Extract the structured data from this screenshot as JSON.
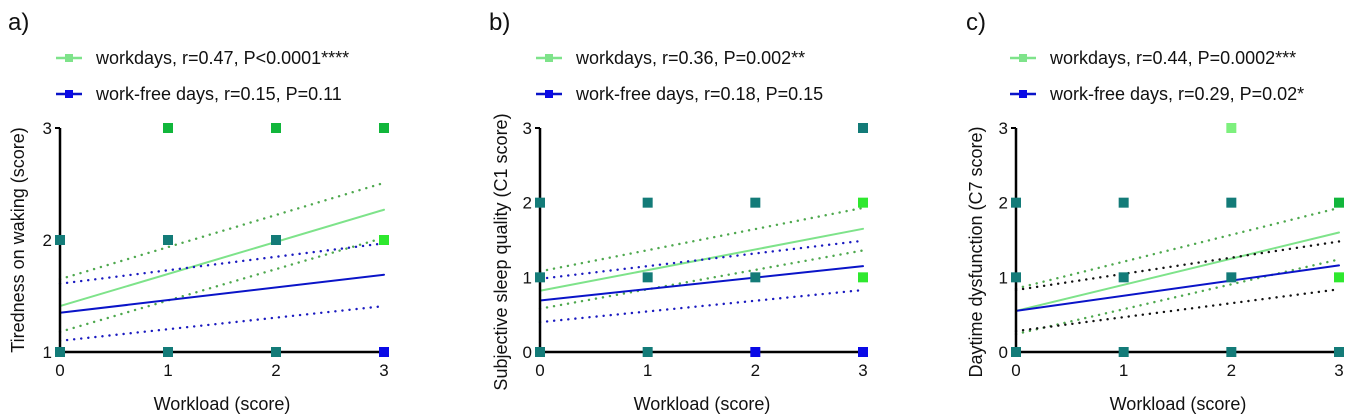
{
  "colors": {
    "workdays_line": "#7ee38a",
    "workdays_ci": "#4ea84e",
    "workfree_line": "#0a14c8",
    "workfree_ci": "#1a1ac0",
    "workfree_ci_c": "#111111",
    "marker_green": "#11b63b",
    "marker_lightgreen": "#2ee82e",
    "marker_palegreen": "#7df07d",
    "marker_teal": "#137b78",
    "marker_blue": "#0a0ae6",
    "axis": "#000000"
  },
  "chart_data": [
    {
      "type": "scatter",
      "panel": "a)",
      "xlabel": "Workload (score)",
      "ylabel": "Tiredness on waking (score)",
      "xlim": [
        0,
        3
      ],
      "ylim": [
        1,
        3
      ],
      "xticks": [
        "0",
        "1",
        "2",
        "3"
      ],
      "yticks": [
        "1",
        "2",
        "3"
      ],
      "yticks_values": [
        1,
        2,
        3
      ],
      "legend": [
        {
          "label": "workdays, r=0.47, P<0.0001****",
          "series": "workdays"
        },
        {
          "label": "work-free days, r=0.15, P=0.11",
          "series": "workfree"
        }
      ],
      "points": [
        {
          "x": 1,
          "y": 3,
          "color": "marker_green"
        },
        {
          "x": 2,
          "y": 3,
          "color": "marker_green"
        },
        {
          "x": 3,
          "y": 3,
          "color": "marker_green"
        },
        {
          "x": 0,
          "y": 2,
          "color": "marker_teal"
        },
        {
          "x": 1,
          "y": 2,
          "color": "marker_teal"
        },
        {
          "x": 2,
          "y": 2,
          "color": "marker_teal"
        },
        {
          "x": 3,
          "y": 2,
          "color": "marker_lightgreen"
        },
        {
          "x": 0,
          "y": 1,
          "color": "marker_teal"
        },
        {
          "x": 1,
          "y": 1,
          "color": "marker_teal"
        },
        {
          "x": 2,
          "y": 1,
          "color": "marker_teal"
        },
        {
          "x": 3,
          "y": 1,
          "color": "marker_blue"
        }
      ],
      "series": [
        {
          "name": "workdays",
          "kind": "fit",
          "y0": 1.41,
          "y3": 2.27
        },
        {
          "name": "workdays",
          "kind": "ci_upper",
          "y0": 1.65,
          "y3": 2.51
        },
        {
          "name": "workdays",
          "kind": "ci_lower",
          "y0": 1.18,
          "y3": 2.02
        },
        {
          "name": "workfree",
          "kind": "fit",
          "y0": 1.35,
          "y3": 1.69
        },
        {
          "name": "workfree",
          "kind": "ci_upper",
          "y0": 1.61,
          "y3": 1.97
        },
        {
          "name": "workfree",
          "kind": "ci_lower",
          "y0": 1.1,
          "y3": 1.41
        }
      ]
    },
    {
      "type": "scatter",
      "panel": "b)",
      "xlabel": "Workload (score)",
      "ylabel": "Subjective sleep quality (C1 score)",
      "xlim": [
        0,
        3
      ],
      "ylim": [
        0,
        3
      ],
      "xticks": [
        "0",
        "1",
        "2",
        "3"
      ],
      "yticks": [
        "0",
        "1",
        "2",
        "3"
      ],
      "yticks_values": [
        0,
        1,
        2,
        3
      ],
      "legend": [
        {
          "label": "workdays, r=0.36, P=0.002**",
          "series": "workdays"
        },
        {
          "label": "work-free days, r=0.18, P=0.15",
          "series": "workfree"
        }
      ],
      "points": [
        {
          "x": 3,
          "y": 3,
          "color": "marker_teal"
        },
        {
          "x": 0,
          "y": 2,
          "color": "marker_teal"
        },
        {
          "x": 1,
          "y": 2,
          "color": "marker_teal"
        },
        {
          "x": 2,
          "y": 2,
          "color": "marker_teal"
        },
        {
          "x": 3,
          "y": 2,
          "color": "marker_lightgreen"
        },
        {
          "x": 0,
          "y": 1,
          "color": "marker_teal"
        },
        {
          "x": 1,
          "y": 1,
          "color": "marker_teal"
        },
        {
          "x": 2,
          "y": 1,
          "color": "marker_teal"
        },
        {
          "x": 3,
          "y": 1,
          "color": "marker_lightgreen"
        },
        {
          "x": 0,
          "y": 0,
          "color": "marker_teal"
        },
        {
          "x": 1,
          "y": 0,
          "color": "marker_teal"
        },
        {
          "x": 2,
          "y": 0,
          "color": "marker_blue"
        },
        {
          "x": 3,
          "y": 0,
          "color": "marker_blue"
        }
      ],
      "series": [
        {
          "name": "workdays",
          "kind": "fit",
          "y0": 0.82,
          "y3": 1.65
        },
        {
          "name": "workdays",
          "kind": "ci_upper",
          "y0": 1.08,
          "y3": 1.93
        },
        {
          "name": "workdays",
          "kind": "ci_lower",
          "y0": 0.58,
          "y3": 1.36
        },
        {
          "name": "workfree",
          "kind": "fit",
          "y0": 0.69,
          "y3": 1.15
        },
        {
          "name": "workfree",
          "kind": "ci_upper",
          "y0": 0.98,
          "y3": 1.49
        },
        {
          "name": "workfree",
          "kind": "ci_lower",
          "y0": 0.4,
          "y3": 0.83
        }
      ]
    },
    {
      "type": "scatter",
      "panel": "c)",
      "xlabel": "Workload (score)",
      "ylabel": "Daytime dysfunction (C7 score)",
      "xlim": [
        0,
        3
      ],
      "ylim": [
        0,
        3
      ],
      "xticks": [
        "0",
        "1",
        "2",
        "3"
      ],
      "yticks": [
        "0",
        "1",
        "2",
        "3"
      ],
      "yticks_values": [
        0,
        1,
        2,
        3
      ],
      "legend": [
        {
          "label": "workdays, r=0.44, P=0.0002***",
          "series": "workdays"
        },
        {
          "label": "work-free days, r=0.29, P=0.02*",
          "series": "workfree"
        }
      ],
      "points": [
        {
          "x": 2,
          "y": 3,
          "color": "marker_palegreen"
        },
        {
          "x": 0,
          "y": 2,
          "color": "marker_teal"
        },
        {
          "x": 1,
          "y": 2,
          "color": "marker_teal"
        },
        {
          "x": 2,
          "y": 2,
          "color": "marker_teal"
        },
        {
          "x": 3,
          "y": 2,
          "color": "marker_green"
        },
        {
          "x": 0,
          "y": 1,
          "color": "marker_teal"
        },
        {
          "x": 1,
          "y": 1,
          "color": "marker_teal"
        },
        {
          "x": 2,
          "y": 1,
          "color": "marker_teal"
        },
        {
          "x": 3,
          "y": 1,
          "color": "marker_lightgreen"
        },
        {
          "x": 0,
          "y": 0,
          "color": "marker_teal"
        },
        {
          "x": 1,
          "y": 0,
          "color": "marker_teal"
        },
        {
          "x": 2,
          "y": 0,
          "color": "marker_teal"
        },
        {
          "x": 3,
          "y": 0,
          "color": "marker_teal"
        }
      ],
      "series": [
        {
          "name": "workdays",
          "kind": "fit",
          "y0": 0.55,
          "y3": 1.6
        },
        {
          "name": "workdays",
          "kind": "ci_upper",
          "y0": 0.85,
          "y3": 1.93
        },
        {
          "name": "workdays",
          "kind": "ci_lower",
          "y0": 0.24,
          "y3": 1.24
        },
        {
          "name": "workfree",
          "kind": "fit",
          "y0": 0.55,
          "y3": 1.16
        },
        {
          "name": "workfree",
          "kind": "ci_upper",
          "y0": 0.83,
          "y3": 1.48
        },
        {
          "name": "workfree",
          "kind": "ci_lower",
          "y0": 0.28,
          "y3": 0.84
        }
      ]
    }
  ]
}
